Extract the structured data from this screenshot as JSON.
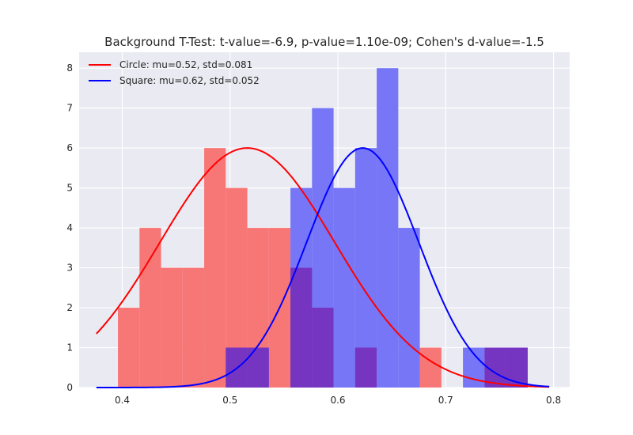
{
  "chart_data": {
    "type": "histogram",
    "title": "Background T-Test: t-value=-6.9, p-value=1.10e-09; Cohen's d-value=-1.5",
    "xlabel": "",
    "ylabel": "",
    "xlim": [
      0.36,
      0.815
    ],
    "ylim": [
      0,
      8.4
    ],
    "x_ticks": [
      0.4,
      0.5,
      0.6,
      0.7,
      0.8
    ],
    "x_tick_labels": [
      "0.4",
      "0.5",
      "0.6",
      "0.7",
      "0.8"
    ],
    "y_ticks": [
      0,
      1,
      2,
      3,
      4,
      5,
      6,
      7,
      8
    ],
    "y_tick_labels": [
      "0",
      "1",
      "2",
      "3",
      "4",
      "5",
      "6",
      "7",
      "8"
    ],
    "grid": true,
    "legend_position": "top-left",
    "bin_width": 0.02,
    "series": [
      {
        "name": "Circle: mu=0.52, std=0.081",
        "color": "#ff0000",
        "bar_color": "#f77676",
        "mu": 0.52,
        "std": 0.081,
        "curve_peak": 6.0,
        "curve_mu": 0.516,
        "curve_range": [
          0.376,
          0.796
        ],
        "bins": [
          {
            "x0": 0.396,
            "count": 2
          },
          {
            "x0": 0.416,
            "count": 4
          },
          {
            "x0": 0.436,
            "count": 3
          },
          {
            "x0": 0.456,
            "count": 3
          },
          {
            "x0": 0.476,
            "count": 6
          },
          {
            "x0": 0.496,
            "count": 5
          },
          {
            "x0": 0.516,
            "count": 4
          },
          {
            "x0": 0.536,
            "count": 4
          },
          {
            "x0": 0.556,
            "count": 3
          },
          {
            "x0": 0.576,
            "count": 2
          },
          {
            "x0": 0.616,
            "count": 1
          },
          {
            "x0": 0.676,
            "count": 1
          },
          {
            "x0": 0.736,
            "count": 1
          },
          {
            "x0": 0.756,
            "count": 1
          }
        ]
      },
      {
        "name": "Square: mu=0.62, std=0.052",
        "color": "#0000ff",
        "bar_color": "#7676f7",
        "mu": 0.62,
        "std": 0.052,
        "curve_peak": 6.0,
        "curve_mu": 0.623,
        "curve_range": [
          0.376,
          0.796
        ],
        "bins": [
          {
            "x0": 0.496,
            "count": 1
          },
          {
            "x0": 0.516,
            "count": 1
          },
          {
            "x0": 0.556,
            "count": 5
          },
          {
            "x0": 0.576,
            "count": 7
          },
          {
            "x0": 0.596,
            "count": 5
          },
          {
            "x0": 0.616,
            "count": 6
          },
          {
            "x0": 0.636,
            "count": 8
          },
          {
            "x0": 0.656,
            "count": 4
          },
          {
            "x0": 0.716,
            "count": 1
          },
          {
            "x0": 0.736,
            "count": 1
          },
          {
            "x0": 0.756,
            "count": 1
          }
        ]
      }
    ],
    "overlap_color": "#7535c0"
  }
}
